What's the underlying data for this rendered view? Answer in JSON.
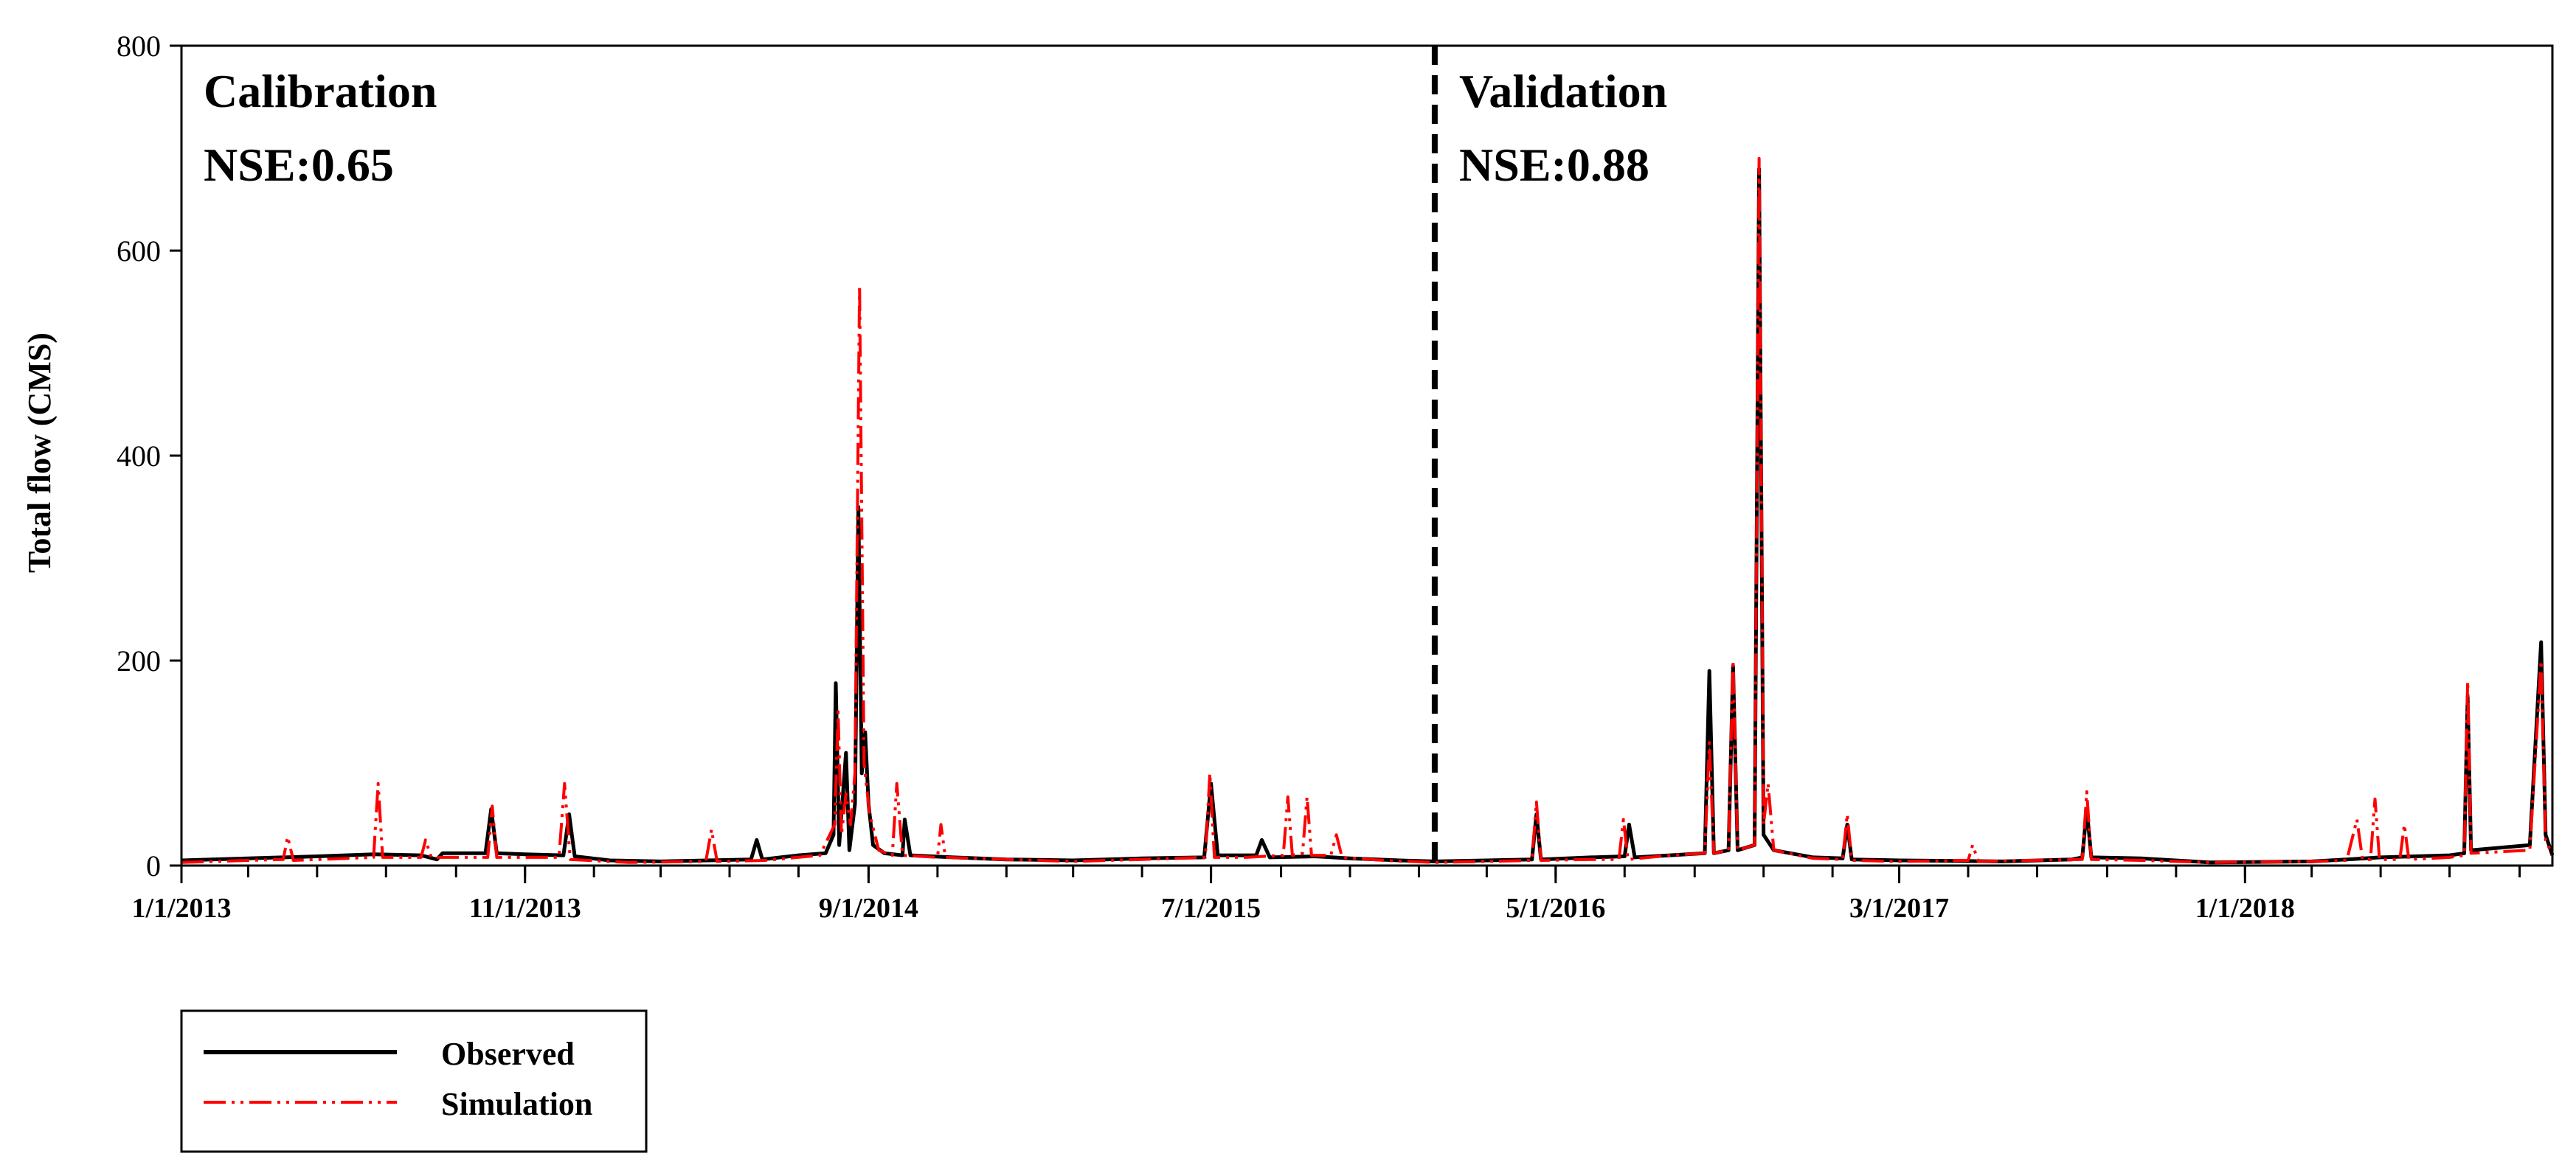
{
  "chart_data": {
    "type": "line",
    "xlabel": "",
    "ylabel": "Total flow (CMS)",
    "xlim": [
      "2013-01-01",
      "2018-09-30"
    ],
    "ylim": [
      0,
      800
    ],
    "y_ticks": [
      0,
      200,
      400,
      600,
      800
    ],
    "x_tick_labels": [
      "1/1/2013",
      "11/1/2013",
      "9/1/2014",
      "7/1/2015",
      "5/1/2016",
      "3/1/2017",
      "1/1/2018"
    ],
    "x_tick_dates": [
      "2013-01-01",
      "2013-11-01",
      "2014-09-01",
      "2015-07-01",
      "2016-05-01",
      "2017-03-01",
      "2018-01-01"
    ],
    "grid": false,
    "legend_position": "bottom-left",
    "divider_date": "2016-01-15",
    "annotations": {
      "calibration_label": "Calibration",
      "calibration_nse": "NSE:0.65",
      "validation_label": "Validation",
      "validation_nse": "NSE:0.88"
    },
    "series": [
      {
        "name": "Observed",
        "color": "#000000",
        "line_style": "solid",
        "points": [
          [
            "2013-01-01",
            5
          ],
          [
            "2013-03-01",
            7
          ],
          [
            "2013-05-01",
            9
          ],
          [
            "2013-06-20",
            11
          ],
          [
            "2013-08-01",
            10
          ],
          [
            "2013-08-15",
            6
          ],
          [
            "2013-08-20",
            12
          ],
          [
            "2013-09-01",
            12
          ],
          [
            "2013-09-27",
            12
          ],
          [
            "2013-10-02",
            55
          ],
          [
            "2013-10-07",
            12
          ],
          [
            "2013-11-01",
            11
          ],
          [
            "2013-12-05",
            10
          ],
          [
            "2013-12-10",
            50
          ],
          [
            "2013-12-15",
            9
          ],
          [
            "2014-01-15",
            5
          ],
          [
            "2014-03-01",
            4
          ],
          [
            "2014-05-20",
            6
          ],
          [
            "2014-05-25",
            25
          ],
          [
            "2014-05-30",
            6
          ],
          [
            "2014-07-01",
            10
          ],
          [
            "2014-07-25",
            12
          ],
          [
            "2014-08-01",
            30
          ],
          [
            "2014-08-03",
            178
          ],
          [
            "2014-08-06",
            20
          ],
          [
            "2014-08-12",
            110
          ],
          [
            "2014-08-15",
            15
          ],
          [
            "2014-08-20",
            60
          ],
          [
            "2014-08-23",
            350
          ],
          [
            "2014-08-26",
            90
          ],
          [
            "2014-08-29",
            130
          ],
          [
            "2014-09-01",
            60
          ],
          [
            "2014-09-05",
            20
          ],
          [
            "2014-09-15",
            12
          ],
          [
            "2014-10-01",
            10
          ],
          [
            "2014-10-03",
            45
          ],
          [
            "2014-10-08",
            10
          ],
          [
            "2014-11-15",
            8
          ],
          [
            "2015-01-01",
            6
          ],
          [
            "2015-03-01",
            5
          ],
          [
            "2015-05-01",
            7
          ],
          [
            "2015-06-25",
            8
          ],
          [
            "2015-07-01",
            80
          ],
          [
            "2015-07-07",
            10
          ],
          [
            "2015-08-10",
            10
          ],
          [
            "2015-08-15",
            25
          ],
          [
            "2015-08-22",
            8
          ],
          [
            "2015-10-01",
            9
          ],
          [
            "2015-11-01",
            7
          ],
          [
            "2015-12-15",
            5
          ],
          [
            "2016-01-15",
            4
          ],
          [
            "2016-03-01",
            5
          ],
          [
            "2016-04-10",
            6
          ],
          [
            "2016-04-14",
            50
          ],
          [
            "2016-04-18",
            6
          ],
          [
            "2016-06-01",
            8
          ],
          [
            "2016-07-01",
            9
          ],
          [
            "2016-07-05",
            40
          ],
          [
            "2016-07-10",
            8
          ],
          [
            "2016-09-10",
            12
          ],
          [
            "2016-09-14",
            190
          ],
          [
            "2016-09-18",
            12
          ],
          [
            "2016-10-01",
            15
          ],
          [
            "2016-10-05",
            195
          ],
          [
            "2016-10-09",
            15
          ],
          [
            "2016-10-24",
            20
          ],
          [
            "2016-10-28",
            680
          ],
          [
            "2016-11-01",
            30
          ],
          [
            "2016-11-10",
            15
          ],
          [
            "2016-12-15",
            8
          ],
          [
            "2017-01-10",
            7
          ],
          [
            "2017-01-14",
            40
          ],
          [
            "2017-01-18",
            6
          ],
          [
            "2017-03-01",
            5
          ],
          [
            "2017-06-01",
            4
          ],
          [
            "2017-08-01",
            6
          ],
          [
            "2017-08-10",
            8
          ],
          [
            "2017-08-14",
            55
          ],
          [
            "2017-08-18",
            8
          ],
          [
            "2017-10-01",
            7
          ],
          [
            "2017-12-01",
            3
          ],
          [
            "2018-03-01",
            4
          ],
          [
            "2018-04-01",
            6
          ],
          [
            "2018-05-01",
            8
          ],
          [
            "2018-07-01",
            10
          ],
          [
            "2018-07-14",
            12
          ],
          [
            "2018-07-17",
            165
          ],
          [
            "2018-07-20",
            15
          ],
          [
            "2018-09-10",
            20
          ],
          [
            "2018-09-20",
            218
          ],
          [
            "2018-09-24",
            30
          ],
          [
            "2018-09-30",
            10
          ]
        ]
      },
      {
        "name": "Simulation",
        "color": "#ff0000",
        "line_style": "dash-dot",
        "points": [
          [
            "2013-01-01",
            3
          ],
          [
            "2013-03-01",
            5
          ],
          [
            "2013-04-01",
            6
          ],
          [
            "2013-04-05",
            28
          ],
          [
            "2013-04-10",
            5
          ],
          [
            "2013-06-20",
            8
          ],
          [
            "2013-06-24",
            80
          ],
          [
            "2013-06-28",
            8
          ],
          [
            "2013-08-01",
            8
          ],
          [
            "2013-08-05",
            25
          ],
          [
            "2013-08-10",
            8
          ],
          [
            "2013-09-29",
            8
          ],
          [
            "2013-10-03",
            58
          ],
          [
            "2013-10-07",
            8
          ],
          [
            "2013-12-01",
            8
          ],
          [
            "2013-12-06",
            80
          ],
          [
            "2013-12-11",
            6
          ],
          [
            "2014-02-01",
            3
          ],
          [
            "2014-04-10",
            4
          ],
          [
            "2014-04-15",
            35
          ],
          [
            "2014-04-20",
            4
          ],
          [
            "2014-06-01",
            5
          ],
          [
            "2014-07-20",
            10
          ],
          [
            "2014-08-02",
            40
          ],
          [
            "2014-08-05",
            150
          ],
          [
            "2014-08-08",
            30
          ],
          [
            "2014-08-12",
            70
          ],
          [
            "2014-08-16",
            40
          ],
          [
            "2014-08-20",
            90
          ],
          [
            "2014-08-24",
            566
          ],
          [
            "2014-08-28",
            100
          ],
          [
            "2014-09-02",
            50
          ],
          [
            "2014-09-10",
            15
          ],
          [
            "2014-09-22",
            10
          ],
          [
            "2014-09-26",
            80
          ],
          [
            "2014-10-01",
            10
          ],
          [
            "2014-11-01",
            8
          ],
          [
            "2014-11-04",
            40
          ],
          [
            "2014-11-08",
            8
          ],
          [
            "2015-01-01",
            6
          ],
          [
            "2015-03-01",
            4
          ],
          [
            "2015-05-01",
            6
          ],
          [
            "2015-06-26",
            8
          ],
          [
            "2015-06-30",
            90
          ],
          [
            "2015-07-04",
            8
          ],
          [
            "2015-08-01",
            8
          ],
          [
            "2015-09-03",
            10
          ],
          [
            "2015-09-07",
            67
          ],
          [
            "2015-09-11",
            10
          ],
          [
            "2015-09-20",
            12
          ],
          [
            "2015-09-24",
            67
          ],
          [
            "2015-09-28",
            10
          ],
          [
            "2015-10-15",
            10
          ],
          [
            "2015-10-20",
            30
          ],
          [
            "2015-10-25",
            8
          ],
          [
            "2015-12-01",
            5
          ],
          [
            "2016-01-15",
            3
          ],
          [
            "2016-03-01",
            4
          ],
          [
            "2016-04-10",
            5
          ],
          [
            "2016-04-14",
            62
          ],
          [
            "2016-04-18",
            5
          ],
          [
            "2016-06-01",
            6
          ],
          [
            "2016-06-26",
            6
          ],
          [
            "2016-06-30",
            45
          ],
          [
            "2016-07-04",
            6
          ],
          [
            "2016-08-10",
            10
          ],
          [
            "2016-09-10",
            12
          ],
          [
            "2016-09-14",
            120
          ],
          [
            "2016-09-18",
            12
          ],
          [
            "2016-10-01",
            15
          ],
          [
            "2016-10-05",
            200
          ],
          [
            "2016-10-09",
            15
          ],
          [
            "2016-10-24",
            20
          ],
          [
            "2016-10-28",
            690
          ],
          [
            "2016-11-01",
            40
          ],
          [
            "2016-11-05",
            80
          ],
          [
            "2016-11-10",
            15
          ],
          [
            "2016-12-15",
            7
          ],
          [
            "2017-01-10",
            6
          ],
          [
            "2017-01-14",
            50
          ],
          [
            "2017-01-18",
            5
          ],
          [
            "2017-03-01",
            4
          ],
          [
            "2017-05-01",
            5
          ],
          [
            "2017-05-05",
            20
          ],
          [
            "2017-05-10",
            4
          ],
          [
            "2017-08-10",
            6
          ],
          [
            "2017-08-14",
            72
          ],
          [
            "2017-08-18",
            6
          ],
          [
            "2017-10-01",
            5
          ],
          [
            "2017-12-01",
            3
          ],
          [
            "2018-03-01",
            4
          ],
          [
            "2018-04-01",
            5
          ],
          [
            "2018-04-10",
            45
          ],
          [
            "2018-04-15",
            6
          ],
          [
            "2018-04-22",
            6
          ],
          [
            "2018-04-26",
            65
          ],
          [
            "2018-04-30",
            6
          ],
          [
            "2018-05-18",
            6
          ],
          [
            "2018-05-22",
            40
          ],
          [
            "2018-05-26",
            6
          ],
          [
            "2018-07-01",
            8
          ],
          [
            "2018-07-14",
            10
          ],
          [
            "2018-07-17",
            180
          ],
          [
            "2018-07-20",
            12
          ],
          [
            "2018-09-10",
            15
          ],
          [
            "2018-09-20",
            200
          ],
          [
            "2018-09-24",
            25
          ],
          [
            "2018-09-30",
            10
          ]
        ]
      }
    ]
  }
}
